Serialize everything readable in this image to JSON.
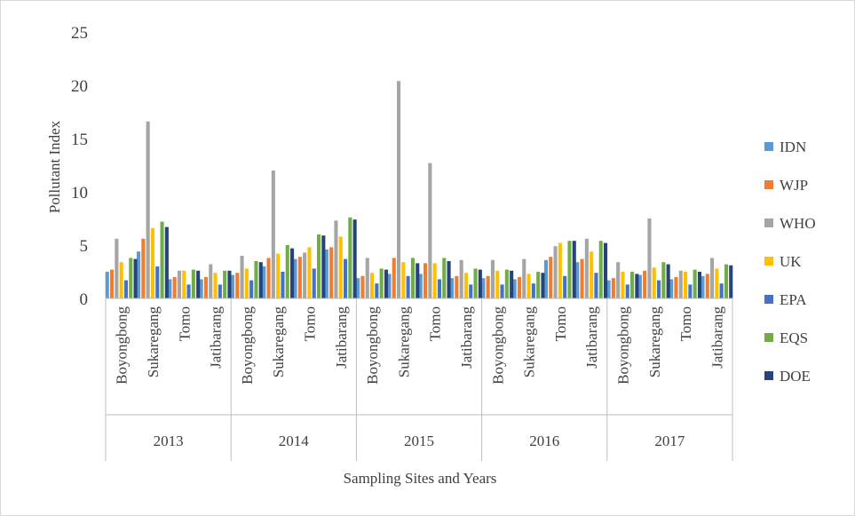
{
  "chart_data": {
    "type": "bar",
    "title": "",
    "xlabel": "Sampling Sites and Years",
    "ylabel": "Pollutant Index",
    "ylim": [
      0,
      25
    ],
    "yticks": [
      0,
      5,
      10,
      15,
      20,
      25
    ],
    "grid": false,
    "legend_position": "right",
    "groups": [
      {
        "label": "2013",
        "sites": [
          "Boyongbong",
          "Sukaregang",
          "Tomo",
          "Jatibarang"
        ]
      },
      {
        "label": "2014",
        "sites": [
          "Boyongbong",
          "Sukaregang",
          "Tomo",
          "Jatibarang"
        ]
      },
      {
        "label": "2015",
        "sites": [
          "Boyongbong",
          "Sukaregang",
          "Tomo",
          "Jatibarang"
        ]
      },
      {
        "label": "2016",
        "sites": [
          "Boyongbong",
          "Sukaregang",
          "Tomo",
          "Jatibarang"
        ]
      },
      {
        "label": "2017",
        "sites": [
          "Boyongbong",
          "Sukaregang",
          "Tomo",
          "Jatibarang"
        ]
      }
    ],
    "series": [
      {
        "name": "IDN",
        "color": "#5B9BD5",
        "values": [
          2.5,
          4.4,
          1.8,
          1.8,
          2.2,
          3.0,
          3.7,
          4.6,
          1.9,
          2.3,
          2.3,
          1.9,
          1.9,
          1.8,
          3.6,
          3.4,
          1.7,
          2.2,
          1.8,
          2.1
        ]
      },
      {
        "name": "WJP",
        "color": "#ED7D31",
        "values": [
          2.7,
          5.6,
          2.0,
          2.0,
          2.4,
          3.8,
          3.9,
          4.8,
          2.1,
          3.8,
          3.3,
          2.1,
          2.1,
          2.0,
          3.9,
          3.7,
          1.9,
          2.6,
          2.0,
          2.3
        ]
      },
      {
        "name": "WHO",
        "color": "#A5A5A5",
        "values": [
          5.6,
          16.6,
          2.6,
          3.2,
          4.0,
          12.0,
          4.3,
          7.3,
          3.8,
          20.4,
          12.7,
          3.6,
          3.6,
          3.7,
          4.9,
          5.6,
          3.4,
          7.5,
          2.6,
          3.8
        ]
      },
      {
        "name": "UK",
        "color": "#FFC000",
        "values": [
          3.4,
          6.6,
          2.6,
          2.4,
          2.8,
          4.2,
          4.8,
          5.8,
          2.4,
          3.4,
          3.3,
          2.4,
          2.6,
          2.3,
          5.2,
          4.4,
          2.5,
          2.9,
          2.5,
          2.8
        ]
      },
      {
        "name": "EPA",
        "color": "#4472C4",
        "values": [
          1.7,
          3.0,
          1.3,
          1.3,
          1.7,
          2.5,
          2.8,
          3.7,
          1.4,
          2.1,
          1.8,
          1.3,
          1.3,
          1.4,
          2.1,
          2.4,
          1.3,
          1.7,
          1.3,
          1.4
        ]
      },
      {
        "name": "EQS",
        "color": "#70AD47",
        "values": [
          3.8,
          7.2,
          2.7,
          2.6,
          3.5,
          5.0,
          6.0,
          7.6,
          2.8,
          3.8,
          3.8,
          2.8,
          2.7,
          2.5,
          5.4,
          5.4,
          2.5,
          3.4,
          2.7,
          3.2
        ]
      },
      {
        "name": "DOE",
        "color": "#264478",
        "values": [
          3.7,
          6.7,
          2.6,
          2.6,
          3.4,
          4.7,
          5.9,
          7.4,
          2.7,
          3.3,
          3.5,
          2.7,
          2.6,
          2.4,
          5.4,
          5.2,
          2.3,
          3.2,
          2.5,
          3.1
        ]
      }
    ]
  }
}
